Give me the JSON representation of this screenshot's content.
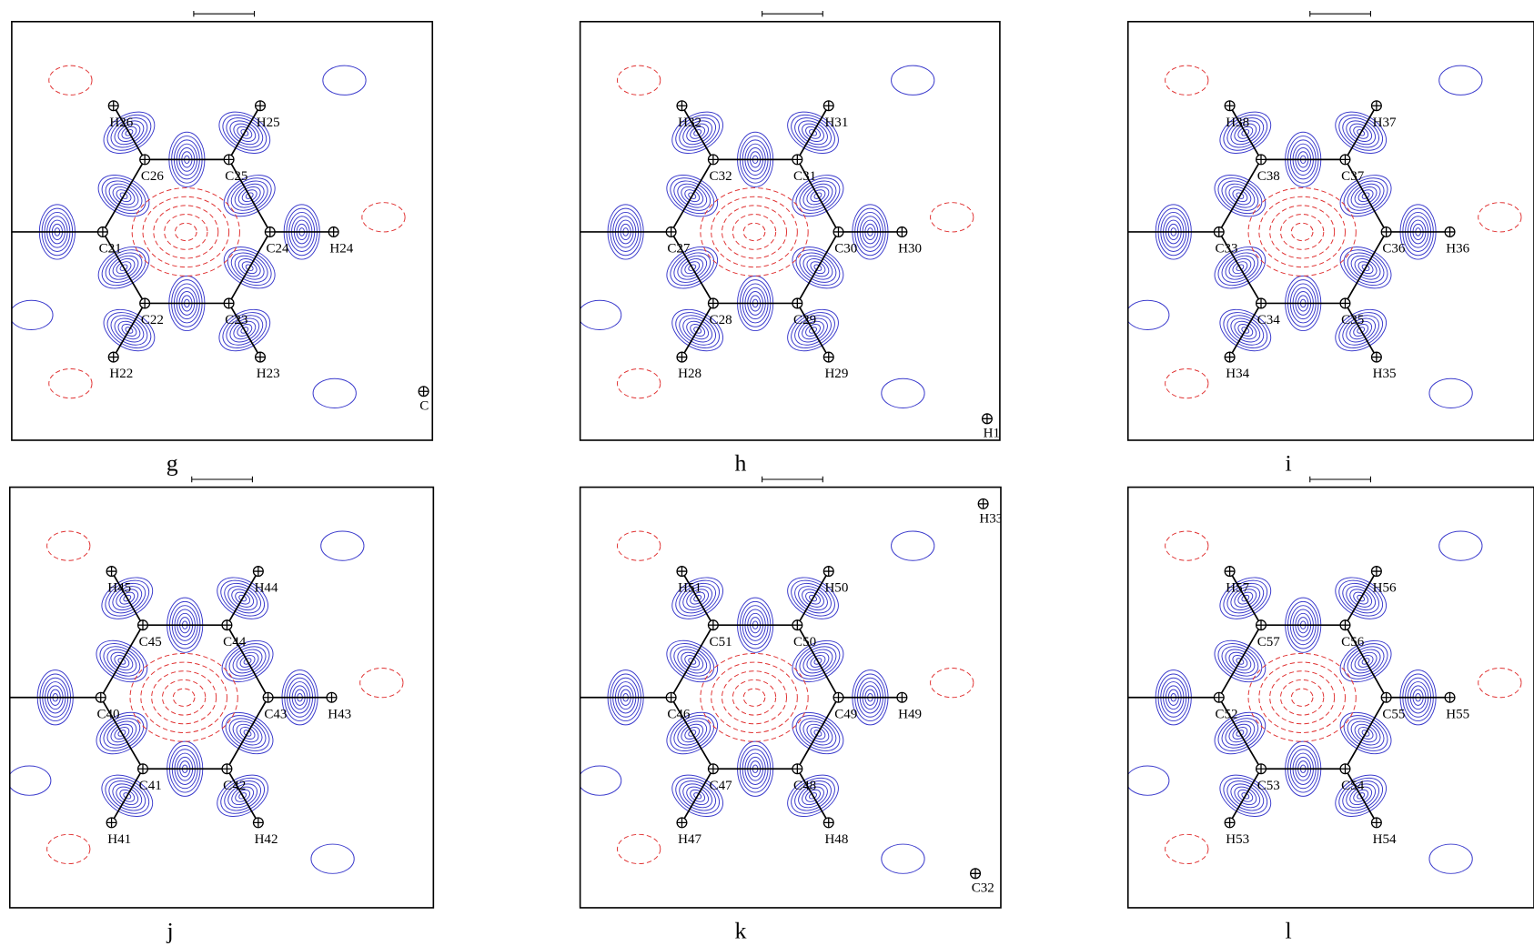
{
  "panels": [
    {
      "label": "g",
      "atoms": [
        "C21",
        "C26",
        "C25",
        "C24",
        "C23",
        "C22",
        "H26",
        "H25",
        "H24",
        "H23",
        "H22"
      ],
      "extra": [
        "C"
      ]
    },
    {
      "label": "h",
      "atoms": [
        "C27",
        "C32",
        "C31",
        "C30",
        "C29",
        "C28",
        "H32",
        "H31",
        "H30",
        "H29",
        "H28"
      ],
      "extra": [
        "H1"
      ]
    },
    {
      "label": "i",
      "atoms": [
        "C33",
        "C38",
        "C37",
        "C36",
        "C35",
        "C34",
        "H38",
        "H37",
        "H36",
        "H35",
        "H34"
      ],
      "extra": []
    },
    {
      "label": "j",
      "atoms": [
        "C40",
        "C45",
        "C44",
        "C43",
        "C42",
        "C41",
        "H45",
        "H44",
        "H43",
        "H42",
        "H41"
      ],
      "extra": []
    },
    {
      "label": "k",
      "atoms": [
        "C46",
        "C51",
        "C50",
        "C49",
        "C48",
        "C47",
        "H51",
        "H50",
        "H49",
        "H48",
        "H47"
      ],
      "extra": [
        "H33",
        "C32"
      ]
    },
    {
      "label": "l",
      "atoms": [
        "C52",
        "C57",
        "C56",
        "C55",
        "C54",
        "C53",
        "H57",
        "H56",
        "H55",
        "H54",
        "H53"
      ],
      "extra": []
    }
  ]
}
